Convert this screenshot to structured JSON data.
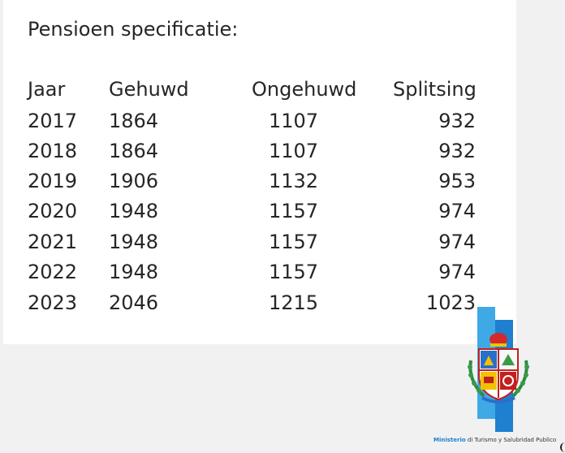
{
  "title": "Pensioen specificatie:",
  "table": {
    "headers": [
      "Jaar",
      "Gehuwd",
      "Ongehuwd",
      "Splitsing"
    ],
    "rows": [
      [
        "2017",
        "1864",
        "1107",
        "932"
      ],
      [
        "2018",
        "1864",
        "1107",
        "932"
      ],
      [
        "2019",
        "1906",
        "1132",
        "953"
      ],
      [
        "2020",
        "1948",
        "1157",
        "974"
      ],
      [
        "2021",
        "1948",
        "1157",
        "974"
      ],
      [
        "2022",
        "1948",
        "1157",
        "974"
      ],
      [
        "2023",
        "2046",
        "1215",
        "1023"
      ]
    ]
  },
  "footer": {
    "ministry_word": "Ministerio",
    "ministry_rest": " di Turismo y Salubridad Publico"
  },
  "colors": {
    "bar_light": "#3fa9e6",
    "bar_dark": "#1f7fd0",
    "text": "#262626"
  },
  "icons": [
    "coat-of-arms-icon"
  ]
}
